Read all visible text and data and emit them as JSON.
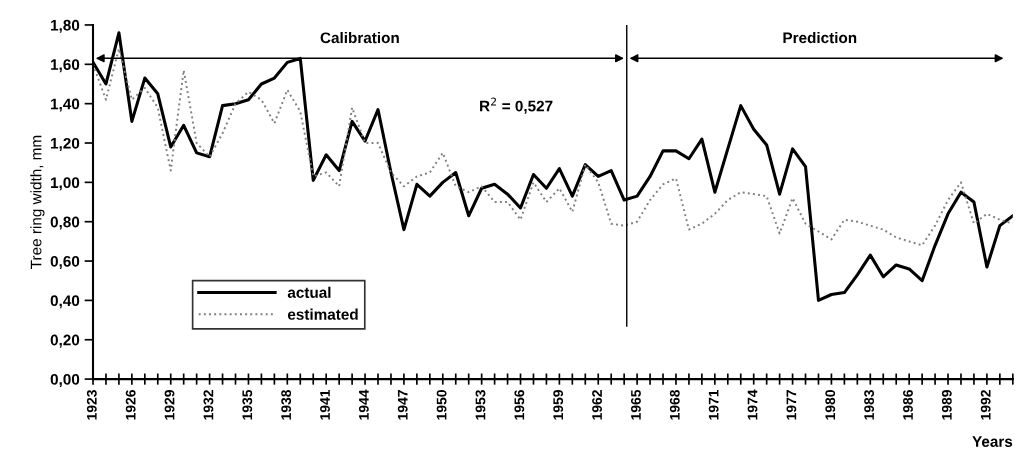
{
  "chart_data": {
    "type": "line",
    "ylabel": "Tree ring width, mm",
    "xlabel": "Years",
    "x": [
      1923,
      1924,
      1925,
      1926,
      1927,
      1928,
      1929,
      1930,
      1931,
      1932,
      1933,
      1934,
      1935,
      1936,
      1937,
      1938,
      1939,
      1940,
      1941,
      1942,
      1943,
      1944,
      1945,
      1946,
      1947,
      1948,
      1949,
      1950,
      1951,
      1952,
      1953,
      1954,
      1955,
      1956,
      1957,
      1958,
      1959,
      1960,
      1961,
      1962,
      1963,
      1964,
      1965,
      1966,
      1967,
      1968,
      1969,
      1970,
      1971,
      1972,
      1973,
      1974,
      1975,
      1976,
      1977,
      1978,
      1979,
      1980,
      1981,
      1982,
      1983,
      1984,
      1985,
      1986,
      1987,
      1988,
      1989,
      1990,
      1991,
      1992,
      1993,
      1994
    ],
    "series": [
      {
        "name": "actual",
        "color": "#000000",
        "line_style": "solid",
        "values": [
          1.61,
          1.5,
          1.76,
          1.31,
          1.53,
          1.45,
          1.18,
          1.29,
          1.15,
          1.13,
          1.39,
          1.4,
          1.42,
          1.5,
          1.53,
          1.61,
          1.63,
          1.01,
          1.14,
          1.06,
          1.31,
          1.21,
          1.37,
          1.05,
          0.76,
          0.99,
          0.93,
          1.0,
          1.05,
          0.83,
          0.97,
          0.99,
          0.94,
          0.87,
          1.04,
          0.97,
          1.07,
          0.93,
          1.09,
          1.03,
          1.06,
          0.91,
          0.93,
          1.03,
          1.16,
          1.16,
          1.12,
          1.22,
          0.95,
          1.17,
          1.39,
          1.27,
          1.19,
          0.94,
          1.17,
          1.08,
          0.4,
          0.43,
          0.44,
          0.53,
          0.63,
          0.52,
          0.58,
          0.56,
          0.5,
          0.68,
          0.84,
          0.95,
          0.9,
          0.57,
          0.78,
          0.83
        ]
      },
      {
        "name": "estimated",
        "color": "#7f7f7f",
        "line_style": "dotted",
        "values": [
          1.6,
          1.42,
          1.68,
          1.42,
          1.48,
          1.38,
          1.06,
          1.57,
          1.2,
          1.13,
          1.25,
          1.4,
          1.46,
          1.42,
          1.3,
          1.47,
          1.36,
          1.03,
          1.05,
          0.98,
          1.38,
          1.2,
          1.2,
          1.05,
          0.98,
          1.03,
          1.05,
          1.15,
          0.98,
          0.95,
          0.98,
          0.9,
          0.9,
          0.81,
          1.0,
          0.9,
          0.97,
          0.85,
          1.09,
          1.0,
          0.79,
          0.78,
          0.8,
          0.91,
          0.99,
          1.02,
          0.76,
          0.79,
          0.84,
          0.91,
          0.95,
          0.94,
          0.93,
          0.74,
          0.92,
          0.79,
          0.75,
          0.71,
          0.81,
          0.8,
          0.78,
          0.76,
          0.72,
          0.7,
          0.68,
          0.78,
          0.91,
          1.0,
          0.79,
          0.84,
          0.81,
          0.79
        ]
      }
    ],
    "xlim": [
      1923,
      1994
    ],
    "ylim": [
      0,
      1.8
    ],
    "xticks": [
      1923,
      {
        "value": 1924,
        "label": null
      },
      {
        "value": 1925,
        "label": null
      },
      1926,
      {
        "value": 1927,
        "label": null
      },
      {
        "value": 1928,
        "label": null
      },
      1929,
      {
        "value": 1930,
        "label": null
      },
      {
        "value": 1931,
        "label": null
      },
      1932,
      {
        "value": 1933,
        "label": null
      },
      {
        "value": 1934,
        "label": null
      },
      1935,
      {
        "value": 1936,
        "label": null
      },
      {
        "value": 1937,
        "label": null
      },
      1938,
      {
        "value": 1939,
        "label": null
      },
      {
        "value": 1940,
        "label": null
      },
      1941,
      {
        "value": 1942,
        "label": null
      },
      {
        "value": 1943,
        "label": null
      },
      1944,
      {
        "value": 1945,
        "label": null
      },
      {
        "value": 1946,
        "label": null
      },
      1947,
      {
        "value": 1948,
        "label": null
      },
      {
        "value": 1949,
        "label": null
      },
      1950,
      {
        "value": 1951,
        "label": null
      },
      {
        "value": 1952,
        "label": null
      },
      1953,
      {
        "value": 1954,
        "label": null
      },
      {
        "value": 1955,
        "label": null
      },
      1956,
      {
        "value": 1957,
        "label": null
      },
      {
        "value": 1958,
        "label": null
      },
      1959,
      {
        "value": 1960,
        "label": null
      },
      {
        "value": 1961,
        "label": null
      },
      1962,
      {
        "value": 1963,
        "label": null
      },
      {
        "value": 1964,
        "label": null
      },
      1965,
      {
        "value": 1966,
        "label": null
      },
      {
        "value": 1967,
        "label": null
      },
      1968,
      {
        "value": 1969,
        "label": null
      },
      {
        "value": 1970,
        "label": null
      },
      1971,
      {
        "value": 1972,
        "label": null
      },
      {
        "value": 1973,
        "label": null
      },
      1974,
      {
        "value": 1975,
        "label": null
      },
      {
        "value": 1976,
        "label": null
      },
      1977,
      {
        "value": 1978,
        "label": null
      },
      {
        "value": 1979,
        "label": null
      },
      1980,
      {
        "value": 1981,
        "label": null
      },
      {
        "value": 1982,
        "label": null
      },
      1983,
      {
        "value": 1984,
        "label": null
      },
      {
        "value": 1985,
        "label": null
      },
      1986,
      {
        "value": 1987,
        "label": null
      },
      {
        "value": 1988,
        "label": null
      },
      1989,
      {
        "value": 1990,
        "label": null
      },
      {
        "value": 1991,
        "label": null
      },
      1992,
      {
        "value": 1993,
        "label": null
      },
      {
        "value": 1994,
        "label": null
      }
    ],
    "yticks": [
      {
        "value": 0,
        "label": "0,00"
      },
      {
        "value": 0.2,
        "label": "0,20"
      },
      {
        "value": 0.4,
        "label": "0,40"
      },
      {
        "value": 0.6,
        "label": "0,60"
      },
      {
        "value": 0.8,
        "label": "0,80"
      },
      {
        "value": 1.0,
        "label": "1,00"
      },
      {
        "value": 1.2,
        "label": "1,20"
      },
      {
        "value": 1.4,
        "label": "1,40"
      },
      {
        "value": 1.6,
        "label": "1,60"
      },
      {
        "value": 1.8,
        "label": "1,80"
      }
    ],
    "ref_lines": [
      {
        "axis": "x",
        "value": 1964.2,
        "color": "#000000"
      }
    ],
    "annotations": [
      "Calibration",
      "Prediction",
      "R$^{2}$ = 0,527"
    ],
    "grid": false,
    "legend": "lower left",
    "marker": "none"
  }
}
